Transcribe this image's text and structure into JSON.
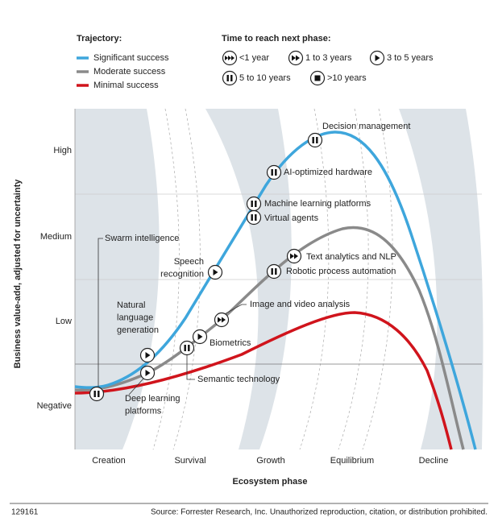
{
  "legend": {
    "trajectory": {
      "title": "Trajectory:",
      "items": [
        {
          "label": "Significant success",
          "color": "#3ea6dc"
        },
        {
          "label": "Moderate success",
          "color": "#8a8a8a"
        },
        {
          "label": "Minimal success",
          "color": "#d0141c"
        }
      ]
    },
    "time": {
      "title": "Time to reach next phase:",
      "items": [
        {
          "label": "<1 year",
          "icon": "ff3"
        },
        {
          "label": "1 to 3 years",
          "icon": "ff2"
        },
        {
          "label": "3 to 5 years",
          "icon": "play"
        },
        {
          "label": "5 to 10 years",
          "icon": "pause"
        },
        {
          "label": ">10 years",
          "icon": "stop"
        }
      ]
    }
  },
  "y_axis": {
    "title": "Business value-add, adjusted for uncertainty",
    "labels": [
      "High",
      "Medium",
      "Low",
      "Negative"
    ]
  },
  "x_axis": {
    "title": "Ecosystem phase",
    "labels": [
      "Creation",
      "Survival",
      "Growth",
      "Equilibrium",
      "Decline"
    ]
  },
  "technologies": [
    {
      "label": [
        "Decision management"
      ],
      "icon": "pause"
    },
    {
      "label": [
        "AI-optimized hardware"
      ],
      "icon": "pause"
    },
    {
      "label": [
        "Machine learning platforms"
      ],
      "icon": "pause"
    },
    {
      "label": [
        "Virtual agents"
      ],
      "icon": "pause"
    },
    {
      "label": [
        "Speech",
        "recognition"
      ],
      "icon": "play"
    },
    {
      "label": [
        "Text analytics and NLP"
      ],
      "icon": "ff2"
    },
    {
      "label": [
        "Robotic process automation"
      ],
      "icon": "pause"
    },
    {
      "label": [
        "Image and video analysis"
      ],
      "icon": "ff2"
    },
    {
      "label": [
        "Natural",
        "language",
        "generation"
      ],
      "icon": "play"
    },
    {
      "label": [
        "Biometrics"
      ],
      "icon": "play"
    },
    {
      "label": [
        "Semantic technology"
      ],
      "icon": "pause"
    },
    {
      "label": [
        "Deep learning",
        "platforms"
      ],
      "icon": "play"
    },
    {
      "label": [
        "Swarm intelligence"
      ],
      "icon": "pause"
    }
  ],
  "footer": {
    "id": "129161",
    "source": "Source: Forrester Research, Inc. Unauthorized reproduction, citation, or distribution prohibited."
  }
}
